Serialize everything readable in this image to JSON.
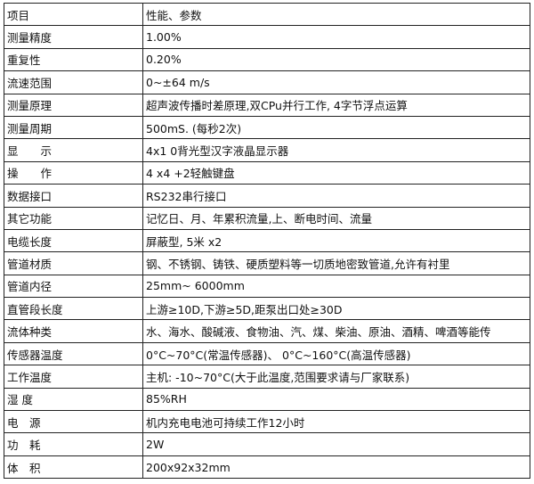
{
  "rows": [
    {
      "label": "项目",
      "value": "性能、参数"
    },
    {
      "label": "测量精度",
      "value": "1.00%"
    },
    {
      "label": "重复性",
      "value": "0.20%"
    },
    {
      "label": "流速范围",
      "value": "0~±64 m/s"
    },
    {
      "label": "测量原理",
      "value": "超声波传播时差原理,双CPu并行工作, 4字节浮点运算"
    },
    {
      "label": "测量周期",
      "value": "500mS. (每秒2次)"
    },
    {
      "label": "显　　示",
      "value": "4x1 0背光型汉字液晶显示器"
    },
    {
      "label": "操　　作",
      "value": "4 x4 +2轻触键盘"
    },
    {
      "label": "数据接口",
      "value": " RS232串行接口"
    },
    {
      "label": "其它功能",
      "value": "记忆日、月、年累积流量,上、断电时间、流量"
    },
    {
      "label": "电缆长度",
      "value": "屏蔽型, 5米 x2"
    },
    {
      "label": "管道材质",
      "value": "钢、不锈钢、铸铁、硬质塑料等一切质地密致管道,允许有衬里"
    },
    {
      "label": "管道内径",
      "value": "25mm~ 6000mm"
    },
    {
      "label": "直管段长度",
      "value": "上游≥10D,下游≥5D,距泵出口处≥30D"
    },
    {
      "label": "流体种类",
      "value": "水、海水、酸碱液、食物油、汽、煤、柴油、原油、酒精、啤酒等能传"
    },
    {
      "label": "传感器温度",
      "value": "0°C~70°C(常温传感器)、 0°C~160°C(高温传感器)"
    },
    {
      "label": "工作温度",
      "value": "主机: -10~70°C(大于此温度,范围要求请与厂家联系)"
    },
    {
      "label": "湿 度",
      "value": "85%RH"
    },
    {
      "label": "电　源",
      "value": "机内充电电池可持续工作12小时"
    },
    {
      "label": "功　耗",
      "value": "2W"
    },
    {
      "label": "体　积",
      "value": "200x92x32mm"
    }
  ]
}
